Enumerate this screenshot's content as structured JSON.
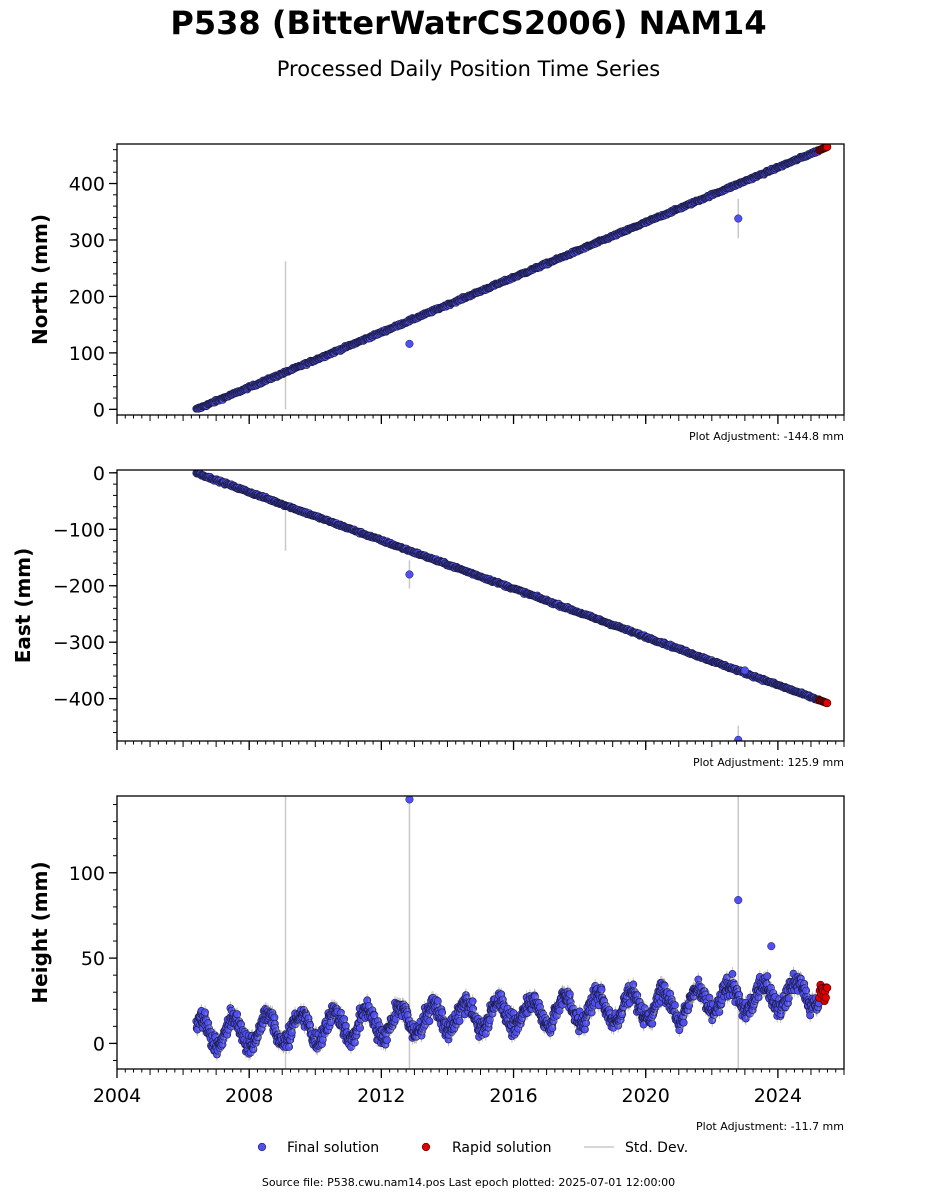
{
  "header": {
    "title": "P538 (BitterWatrCS2006) NAM14",
    "subtitle": "Processed Daily Position Time Series"
  },
  "footer": {
    "source": "Source file: P538.cwu.nam14.pos  Last epoch plotted: 2025-07-01 12:00:00"
  },
  "legend": {
    "final": "Final solution",
    "rapid": "Rapid solution",
    "stddev": "Std. Dev."
  },
  "colors": {
    "final": "#5050f0",
    "rapid": "#e00000",
    "stddev": "#c8c8c8"
  },
  "chart_data": [
    {
      "type": "scatter",
      "name": "north",
      "ylabel": "North (mm)",
      "adjustment": "Plot Adjustment: -144.8 mm",
      "xlim": [
        2004,
        2026
      ],
      "ylim": [
        -10,
        470
      ],
      "yticks": [
        0,
        100,
        200,
        300,
        400
      ],
      "yminor": 20,
      "trend": {
        "start": [
          2006.4,
          0
        ],
        "end": [
          2025.5,
          465
        ]
      },
      "outliers": [
        {
          "x": 2012.85,
          "y": 116,
          "err": 6
        },
        {
          "x": 2022.8,
          "y": 338,
          "err": 35
        }
      ],
      "spikes": [
        {
          "x": 2009.1,
          "low": 0,
          "high": 262
        }
      ],
      "noise": 1.5,
      "rapid": {
        "x_start": 2025.25,
        "x_end": 2025.5
      }
    },
    {
      "type": "scatter",
      "name": "east",
      "ylabel": "East (mm)",
      "adjustment": "Plot Adjustment: 125.9 mm",
      "xlim": [
        2004,
        2026
      ],
      "ylim": [
        -475,
        5
      ],
      "yticks": [
        0,
        -100,
        -200,
        -300,
        -400
      ],
      "yminor": 20,
      "trend": {
        "start": [
          2006.4,
          0
        ],
        "end": [
          2025.5,
          -408
        ]
      },
      "outliers": [
        {
          "x": 2012.85,
          "y": -180,
          "err": 25
        },
        {
          "x": 2022.8,
          "y": -473,
          "err": 25
        },
        {
          "x": 2023.0,
          "y": -350,
          "err": 3
        }
      ],
      "spikes": [
        {
          "x": 2009.1,
          "low": -138,
          "high": -50
        }
      ],
      "noise": 1.5,
      "rapid": {
        "x_start": 2025.25,
        "x_end": 2025.5
      }
    },
    {
      "type": "scatter",
      "name": "height",
      "ylabel": "Height (mm)",
      "adjustment": "Plot Adjustment: -11.7 mm",
      "xlim": [
        2004,
        2026
      ],
      "ylim": [
        -15,
        145
      ],
      "yticks": [
        0,
        50,
        100
      ],
      "yminor": 10,
      "trend": {
        "start": [
          2006.4,
          5
        ],
        "end": [
          2025.5,
          30
        ]
      },
      "seasonal_amplitude": 8,
      "outliers": [
        {
          "x": 2012.85,
          "y": 143,
          "err": 3
        },
        {
          "x": 2022.8,
          "y": 84,
          "err": 3
        },
        {
          "x": 2023.8,
          "y": 57,
          "err": 3
        }
      ],
      "spikes": [
        {
          "x": 2009.1,
          "low": -15,
          "high": 145
        },
        {
          "x": 2012.85,
          "low": -15,
          "high": 145
        },
        {
          "x": 2022.8,
          "low": -15,
          "high": 145
        }
      ],
      "noise": 4,
      "rapid": {
        "x_start": 2025.25,
        "x_end": 2025.5,
        "y_min": 24,
        "y_max": 35
      }
    }
  ],
  "x_axis": {
    "ticks": [
      "2004",
      "2008",
      "2012",
      "2016",
      "2020",
      "2024"
    ],
    "tick_values": [
      2004,
      2008,
      2012,
      2016,
      2020,
      2024
    ],
    "minor_step": 0.25
  }
}
